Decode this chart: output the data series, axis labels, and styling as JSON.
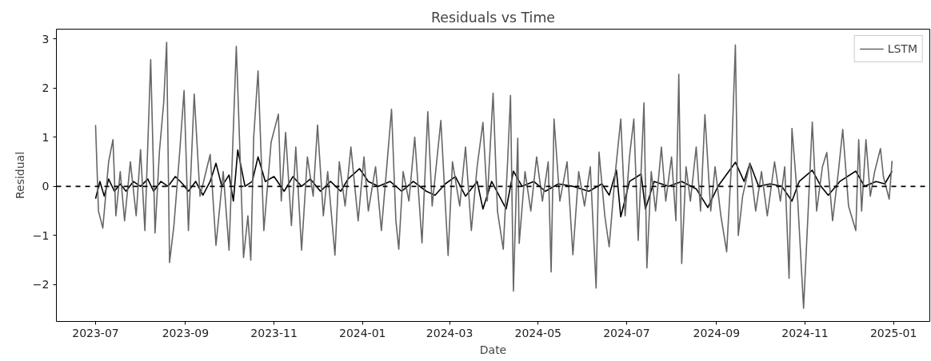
{
  "chart_data": {
    "type": "line",
    "title": "Residuals vs Time",
    "xlabel": "Date",
    "ylabel": "Residual",
    "xlim": [
      "2023-06-04",
      "2025-01-26"
    ],
    "ylim": [
      -2.75,
      3.2
    ],
    "xticks": [
      {
        "value": "2023-07",
        "label": "2023-07"
      },
      {
        "value": "2023-09",
        "label": "2023-09"
      },
      {
        "value": "2023-11",
        "label": "2023-11"
      },
      {
        "value": "2024-01",
        "label": "2024-01"
      },
      {
        "value": "2024-03",
        "label": "2024-03"
      },
      {
        "value": "2024-05",
        "label": "2024-05"
      },
      {
        "value": "2024-07",
        "label": "2024-07"
      },
      {
        "value": "2024-09",
        "label": "2024-09"
      },
      {
        "value": "2024-11",
        "label": "2024-11"
      },
      {
        "value": "2025-01",
        "label": "2025-01"
      }
    ],
    "yticks": [
      {
        "value": -2,
        "label": "−2"
      },
      {
        "value": -1,
        "label": "−1"
      },
      0,
      1,
      2,
      3
    ],
    "grid": false,
    "legend": "top right",
    "line_style": "solid",
    "marker": "none",
    "ref_lines": [
      {
        "axis": "y",
        "value": 0,
        "color": "#000000",
        "line_style": "dashed"
      }
    ],
    "series": [
      {
        "color": "#000000",
        "x": [
          "2023-07-01",
          "2023-07-04",
          "2023-07-07",
          "2023-07-10",
          "2023-07-14",
          "2023-07-18",
          "2023-07-22",
          "2023-07-27",
          "2023-08-01",
          "2023-08-06",
          "2023-08-10",
          "2023-08-15",
          "2023-08-20",
          "2023-08-25",
          "2023-08-30",
          "2023-09-03",
          "2023-09-08",
          "2023-09-13",
          "2023-09-18",
          "2023-09-22",
          "2023-09-26",
          "2023-10-01",
          "2023-10-04",
          "2023-10-07",
          "2023-10-12",
          "2023-10-17",
          "2023-10-21",
          "2023-10-26",
          "2023-11-01",
          "2023-11-08",
          "2023-11-14",
          "2023-11-20",
          "2023-11-26",
          "2023-12-03",
          "2023-12-10",
          "2023-12-17",
          "2023-12-22",
          "2023-12-30",
          "2024-01-05",
          "2024-01-12",
          "2024-01-20",
          "2024-01-28",
          "2024-02-05",
          "2024-02-14",
          "2024-02-20",
          "2024-02-27",
          "2024-03-05",
          "2024-03-12",
          "2024-03-20",
          "2024-03-24",
          "2024-03-30",
          "2024-04-09",
          "2024-04-14",
          "2024-04-20",
          "2024-04-28",
          "2024-05-06",
          "2024-05-15",
          "2024-05-25",
          "2024-06-05",
          "2024-06-14",
          "2024-06-19",
          "2024-06-24",
          "2024-06-27",
          "2024-07-03",
          "2024-07-11",
          "2024-07-14",
          "2024-07-20",
          "2024-07-30",
          "2024-08-08",
          "2024-08-18",
          "2024-08-26",
          "2024-09-02",
          "2024-09-14",
          "2024-09-20",
          "2024-09-24",
          "2024-09-30",
          "2024-10-08",
          "2024-10-16",
          "2024-10-23",
          "2024-10-28",
          "2024-11-06",
          "2024-11-12",
          "2024-11-17",
          "2024-11-25",
          "2024-12-06",
          "2024-12-12",
          "2024-12-20",
          "2024-12-26",
          "2024-12-31"
        ],
        "values": [
          -0.25,
          0.1,
          -0.2,
          0.15,
          -0.1,
          0.05,
          -0.1,
          0.1,
          0.0,
          0.15,
          -0.1,
          0.1,
          0.0,
          0.2,
          0.05,
          -0.1,
          0.1,
          -0.18,
          0.1,
          0.47,
          0.0,
          0.23,
          -0.3,
          0.74,
          0.0,
          0.1,
          0.6,
          0.1,
          0.2,
          -0.1,
          0.2,
          0.0,
          0.15,
          -0.1,
          0.1,
          -0.1,
          0.15,
          0.36,
          0.1,
          0.0,
          0.1,
          -0.1,
          0.1,
          -0.1,
          -0.18,
          0.05,
          0.2,
          -0.2,
          0.1,
          -0.46,
          0.1,
          -0.46,
          0.31,
          0.0,
          0.1,
          -0.1,
          0.05,
          0.0,
          -0.1,
          0.05,
          -0.18,
          0.33,
          -0.62,
          0.1,
          0.25,
          -0.46,
          0.1,
          0.0,
          0.1,
          -0.05,
          -0.43,
          0.0,
          0.49,
          0.1,
          0.47,
          0.0,
          0.05,
          0.0,
          -0.3,
          0.1,
          0.33,
          0.0,
          -0.18,
          0.1,
          0.31,
          0.0,
          0.1,
          0.05,
          0.31
        ]
      },
      {
        "name": "LSTM",
        "color": "#666666",
        "x": [
          "2023-07-01",
          "2023-07-03",
          "2023-07-06",
          "2023-07-10",
          "2023-07-13",
          "2023-07-15",
          "2023-07-18",
          "2023-07-21",
          "2023-07-25",
          "2023-07-29",
          "2023-08-01",
          "2023-08-04",
          "2023-08-08",
          "2023-08-11",
          "2023-08-14",
          "2023-08-17",
          "2023-08-19",
          "2023-08-21",
          "2023-08-24",
          "2023-08-28",
          "2023-08-31",
          "2023-09-03",
          "2023-09-07",
          "2023-09-11",
          "2023-09-18",
          "2023-09-22",
          "2023-09-27",
          "2023-10-01",
          "2023-10-06",
          "2023-10-07",
          "2023-10-11",
          "2023-10-14",
          "2023-10-16",
          "2023-10-18",
          "2023-10-21",
          "2023-10-25",
          "2023-10-30",
          "2023-11-04",
          "2023-11-06",
          "2023-11-09",
          "2023-11-13",
          "2023-11-16",
          "2023-11-20",
          "2023-11-24",
          "2023-11-28",
          "2023-12-01",
          "2023-12-05",
          "2023-12-08",
          "2023-12-13",
          "2023-12-16",
          "2023-12-20",
          "2023-12-24",
          "2023-12-29",
          "2024-01-02",
          "2024-01-05",
          "2024-01-10",
          "2024-01-14",
          "2024-01-18",
          "2024-01-21",
          "2024-01-24",
          "2024-01-26",
          "2024-01-29",
          "2024-02-02",
          "2024-02-06",
          "2024-02-11",
          "2024-02-15",
          "2024-02-18",
          "2024-02-24",
          "2024-02-29",
          "2024-03-03",
          "2024-03-08",
          "2024-03-12",
          "2024-03-16",
          "2024-03-20",
          "2024-03-24",
          "2024-03-27",
          "2024-03-31",
          "2024-04-03",
          "2024-04-07",
          "2024-04-10",
          "2024-04-12",
          "2024-04-14",
          "2024-04-17",
          "2024-04-18",
          "2024-04-22",
          "2024-04-26",
          "2024-04-30",
          "2024-05-04",
          "2024-05-08",
          "2024-05-10",
          "2024-05-12",
          "2024-05-16",
          "2024-05-21",
          "2024-05-25",
          "2024-05-29",
          "2024-06-02",
          "2024-06-06",
          "2024-06-10",
          "2024-06-12",
          "2024-06-16",
          "2024-06-19",
          "2024-06-23",
          "2024-06-27",
          "2024-06-30",
          "2024-07-03",
          "2024-07-06",
          "2024-07-09",
          "2024-07-13",
          "2024-07-15",
          "2024-07-18",
          "2024-07-21",
          "2024-07-25",
          "2024-07-28",
          "2024-08-01",
          "2024-08-04",
          "2024-08-06",
          "2024-08-08",
          "2024-08-11",
          "2024-08-14",
          "2024-08-18",
          "2024-08-21",
          "2024-08-24",
          "2024-08-28",
          "2024-08-31",
          "2024-09-04",
          "2024-09-08",
          "2024-09-11",
          "2024-09-14",
          "2024-09-16",
          "2024-09-19",
          "2024-09-24",
          "2024-09-28",
          "2024-10-02",
          "2024-10-06",
          "2024-10-11",
          "2024-10-15",
          "2024-10-18",
          "2024-10-21",
          "2024-10-23",
          "2024-10-27",
          "2024-10-31",
          "2024-11-03",
          "2024-11-06",
          "2024-11-09",
          "2024-11-13",
          "2024-11-16",
          "2024-11-20",
          "2024-11-24",
          "2024-11-27",
          "2024-12-01",
          "2024-12-06",
          "2024-12-08",
          "2024-12-10",
          "2024-12-13",
          "2024-12-16",
          "2024-12-19",
          "2024-12-23",
          "2024-12-25",
          "2024-12-29",
          "2024-12-31"
        ],
        "values": [
          1.25,
          -0.5,
          -0.85,
          0.5,
          0.95,
          -0.6,
          0.3,
          -0.7,
          0.5,
          -0.6,
          0.75,
          -0.9,
          2.58,
          -0.95,
          0.7,
          1.72,
          2.93,
          -1.55,
          -0.8,
          0.7,
          1.95,
          -0.9,
          1.88,
          -0.2,
          0.65,
          -1.2,
          0.3,
          -1.3,
          2.85,
          2.0,
          -1.45,
          -0.6,
          -1.5,
          1.0,
          2.35,
          -0.9,
          0.9,
          1.47,
          -0.3,
          1.1,
          -0.8,
          0.8,
          -1.3,
          0.6,
          -0.2,
          1.25,
          -0.6,
          0.3,
          -1.4,
          0.5,
          -0.4,
          0.8,
          -0.7,
          0.6,
          -0.5,
          0.4,
          -0.9,
          0.5,
          1.57,
          -0.7,
          -1.28,
          0.3,
          -0.3,
          1.0,
          -1.15,
          1.52,
          -0.4,
          1.34,
          -1.41,
          0.5,
          -0.4,
          0.8,
          -0.9,
          0.4,
          1.3,
          -0.3,
          1.9,
          -0.5,
          -1.28,
          0.5,
          1.85,
          -2.13,
          0.98,
          -1.16,
          0.3,
          -0.5,
          0.6,
          -0.3,
          0.5,
          -1.74,
          1.37,
          -0.3,
          0.5,
          -1.39,
          0.3,
          -0.4,
          0.4,
          -2.07,
          0.7,
          -0.6,
          -1.23,
          0.2,
          1.37,
          -0.6,
          0.6,
          1.37,
          -1.1,
          1.7,
          -1.66,
          0.3,
          -0.5,
          0.8,
          -0.3,
          0.6,
          -0.7,
          2.28,
          -1.57,
          0.4,
          -0.3,
          0.8,
          -0.5,
          1.46,
          -0.5,
          0.4,
          -0.6,
          -1.33,
          0.3,
          2.88,
          -1.0,
          -0.2,
          0.47,
          -0.5,
          0.3,
          -0.6,
          0.5,
          -0.3,
          0.4,
          -1.87,
          1.18,
          -0.3,
          -2.48,
          -0.6,
          1.31,
          -0.5,
          0.4,
          0.69,
          -0.7,
          0.3,
          1.16,
          -0.4,
          -0.9,
          0.95,
          -0.5,
          0.95,
          -0.2,
          0.3,
          0.77,
          0.2,
          -0.26,
          0.52
        ]
      }
    ]
  }
}
